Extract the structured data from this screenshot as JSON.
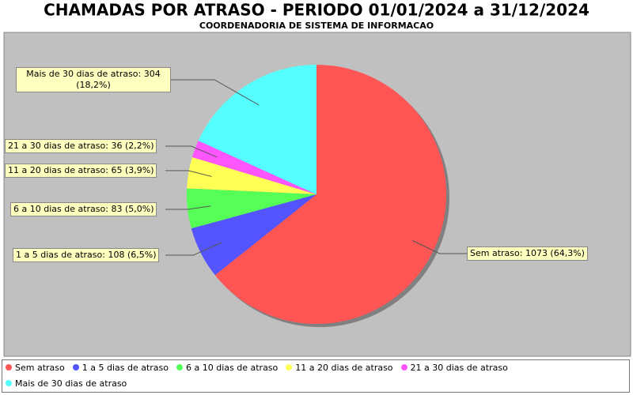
{
  "chart_data": {
    "type": "pie",
    "title": "CHAMADAS POR ATRASO - PERIODO 01/01/2024 a 31/12/2024",
    "subtitle": "COORDENADORIA DE SISTEMA DE INFORMACAO",
    "categories": [
      "Sem atraso",
      "1 a 5 dias de atraso",
      "6 a 10 dias de atraso",
      "11 a 20 dias de atraso",
      "21 a 30 dias de atraso",
      "Mais de 30 dias de atraso"
    ],
    "values": [
      1073,
      108,
      83,
      65,
      36,
      304
    ],
    "value_labels": [
      "Sem atraso: 1073 (64,3%)",
      "1 a 5 dias de atraso: 108 (6,5%)",
      "6 a 10 dias de atraso: 83 (5,0%)",
      "11 a 20 dias de atraso: 65 (3,9%)",
      "21 a 30 dias de atraso: 36 (2,2%)",
      "Mais de 30 dias de atraso: 304 (18,2%)"
    ],
    "colors": [
      "#ff5555",
      "#5555ff",
      "#55ff55",
      "#ffff55",
      "#ff55ff",
      "#55ffff"
    ],
    "legend": "bottom"
  }
}
